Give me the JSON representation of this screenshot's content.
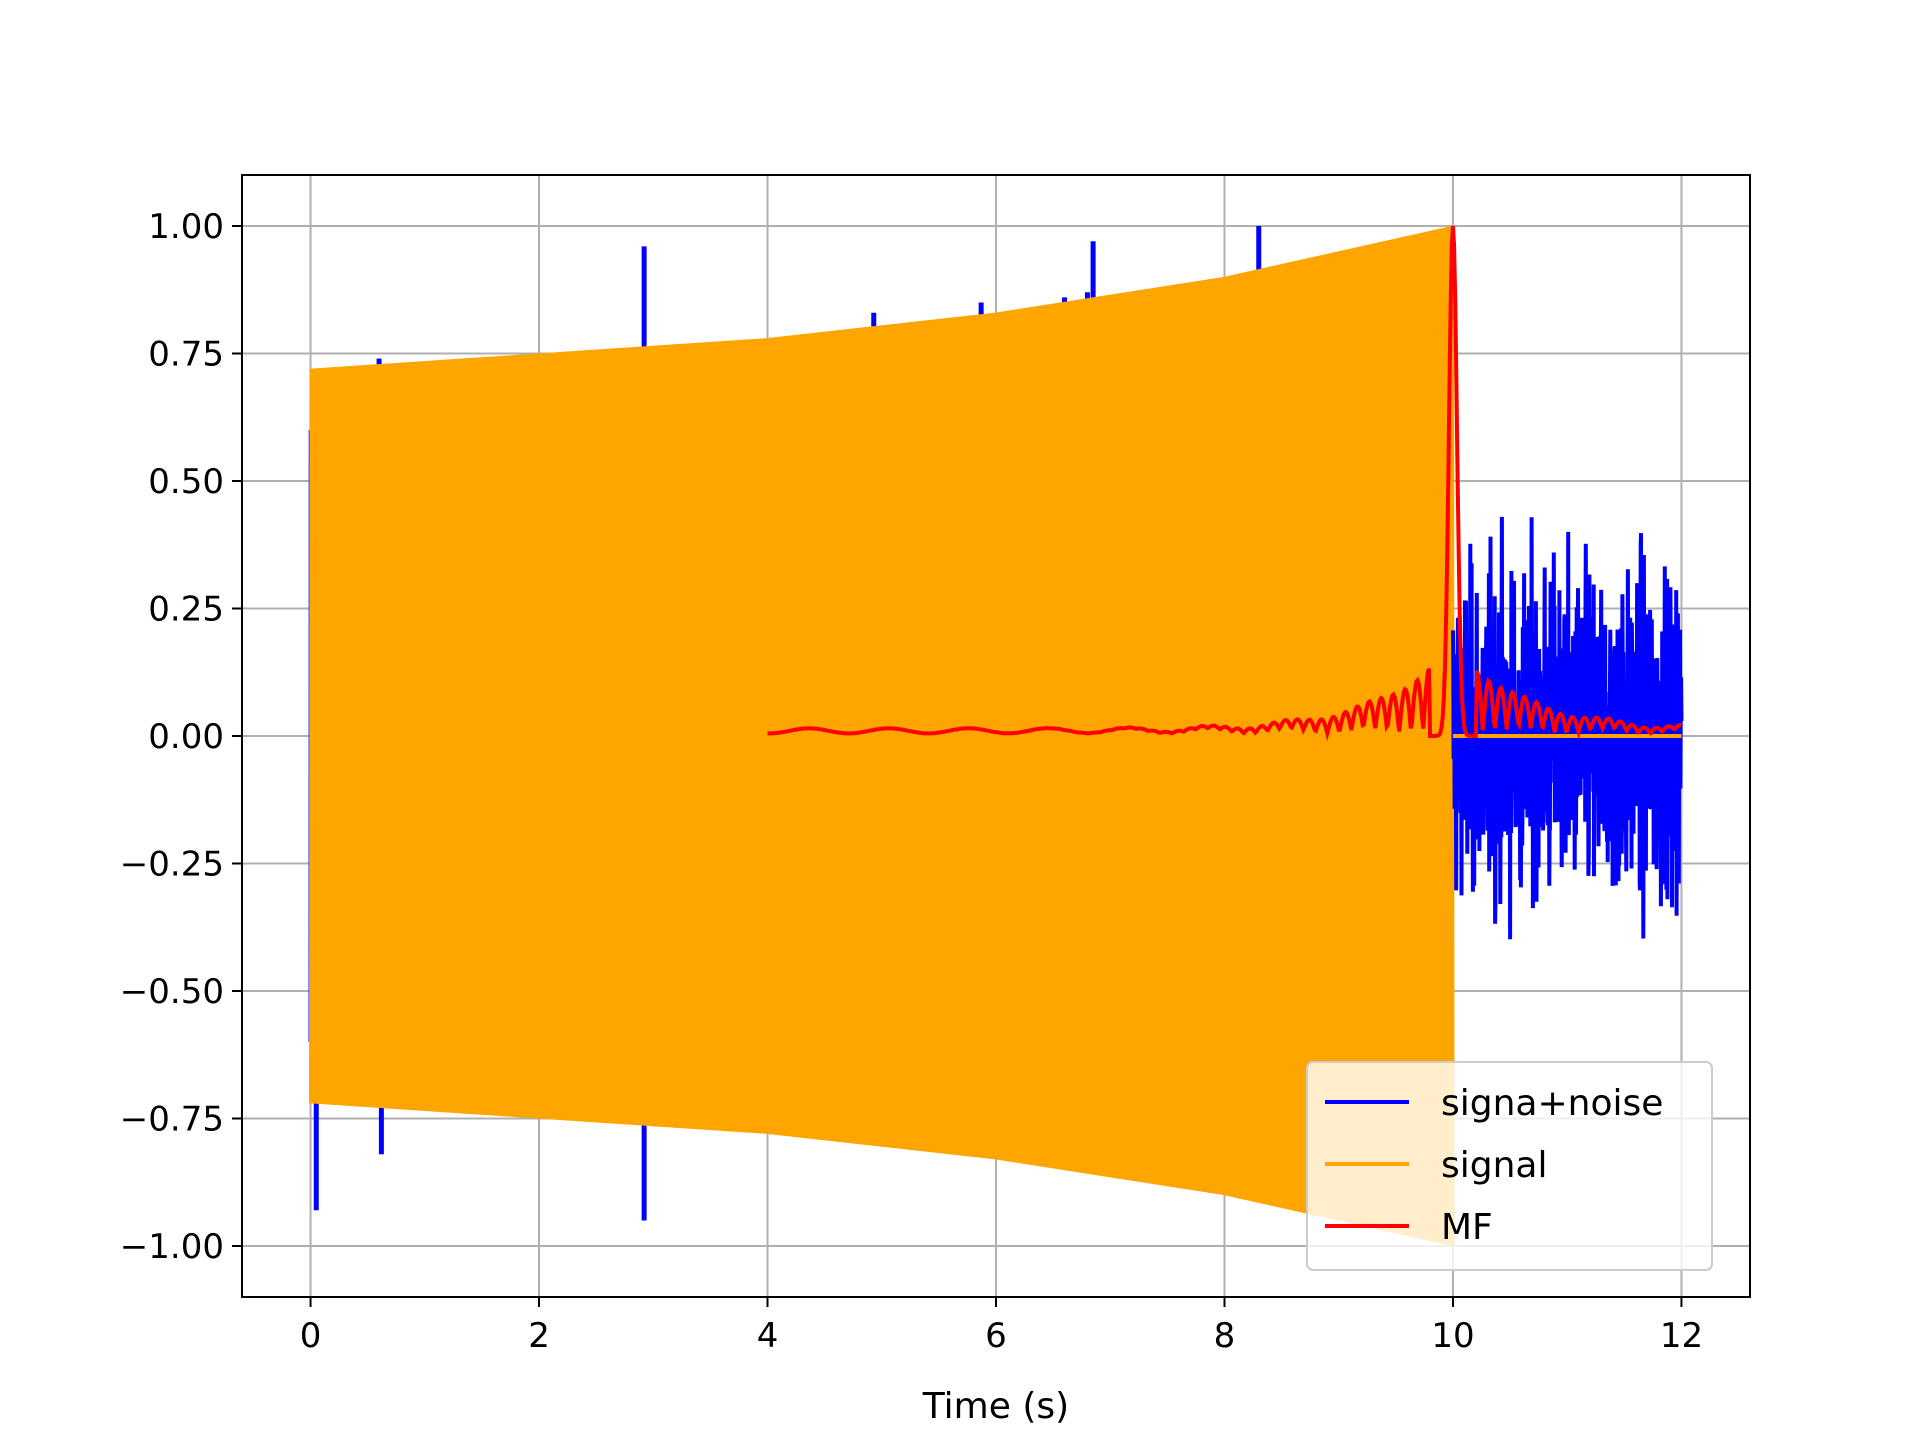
{
  "chart_data": {
    "type": "line",
    "title": "",
    "xlabel": "Time (s)",
    "ylabel": "",
    "xlim": [
      -0.6,
      12.6
    ],
    "ylim": [
      -1.1,
      1.1
    ],
    "x_ticks": [
      0,
      2,
      4,
      6,
      8,
      10,
      12
    ],
    "x_tick_labels": [
      "0",
      "2",
      "4",
      "6",
      "8",
      "10",
      "12"
    ],
    "y_ticks": [
      1.0,
      0.75,
      0.5,
      0.25,
      0.0,
      -0.25,
      -0.5,
      -0.75,
      -1.0
    ],
    "y_tick_labels": [
      "1.00",
      "0.75",
      "0.50",
      "0.25",
      "0.00",
      "−0.25",
      "−0.50",
      "−0.75",
      "−1.00"
    ],
    "grid": true,
    "legend_position": "lower-right",
    "series": [
      {
        "name": "signa+noise",
        "color": "#0000ff",
        "description_points": {
          "x_range": [
            0,
            12
          ],
          "spikes": [
            {
              "x": 0.05,
              "y": -0.93
            },
            {
              "x": 0.6,
              "y": 0.74
            },
            {
              "x": 0.62,
              "y": -0.82
            },
            {
              "x": 2.92,
              "y": 0.96
            },
            {
              "x": 2.92,
              "y": -0.95
            },
            {
              "x": 4.93,
              "y": 0.83
            },
            {
              "x": 5.87,
              "y": 0.85
            },
            {
              "x": 6.6,
              "y": 0.86
            },
            {
              "x": 6.8,
              "y": 0.87
            },
            {
              "x": 6.85,
              "y": 0.97
            },
            {
              "x": 8.3,
              "y": 1.0
            }
          ],
          "noise_region": {
            "x_start": 10.0,
            "x_end": 12.0,
            "amplitude": 0.75
          }
        }
      },
      {
        "name": "signal",
        "color": "#ffa500",
        "envelope": {
          "x": [
            0,
            2,
            4,
            6,
            8,
            10
          ],
          "amplitude": [
            0.72,
            0.75,
            0.78,
            0.83,
            0.9,
            1.0
          ]
        },
        "zero_after": {
          "x_start": 10.0,
          "x_end": 12.0,
          "y": 0.0
        }
      },
      {
        "name": "MF",
        "color": "#ff0000",
        "x_range": [
          4.0,
          12.0
        ],
        "peak": {
          "x": 10.0,
          "y": 1.0
        }
      }
    ]
  }
}
